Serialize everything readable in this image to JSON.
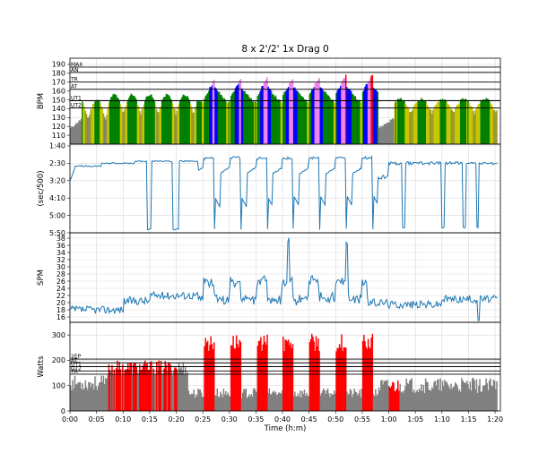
{
  "chart_data": {
    "title": "8 x 2'/2' 1x Drag 0",
    "xlabel": "Time (h:m)",
    "x_ticks": [
      "0:00",
      "0:05",
      "0:10",
      "0:15",
      "0:20",
      "0:25",
      "0:30",
      "0:35",
      "0:40",
      "0:45",
      "0:50",
      "0:55",
      "1:00",
      "1:05",
      "1:10",
      "1:15",
      "1:20"
    ],
    "x_range_min": [
      0,
      81
    ],
    "colors": {
      "hr_gray": "#808080",
      "ut2": "#9a9a2a",
      "ut1": "#c8c800",
      "at": "#008000",
      "tr": "#0000ff",
      "an": "#ee82ee",
      "max": "#ff0000",
      "line": "#1f77b4"
    },
    "intervals_min": [
      [
        25,
        27
      ],
      [
        30,
        32
      ],
      [
        35,
        37
      ],
      [
        40,
        42
      ],
      [
        45,
        47
      ],
      [
        50,
        52
      ],
      [
        55,
        57
      ],
      [
        60,
        62
      ]
    ],
    "panels": [
      {
        "type": "area",
        "ylabel": "BPM",
        "ylim": [
          100,
          197
        ],
        "y_ticks": [
          "110",
          "120",
          "130",
          "140",
          "150",
          "160",
          "170",
          "180",
          "190"
        ],
        "zone_lines": [
          {
            "label": "MAX",
            "value": 187
          },
          {
            "label": "AN",
            "value": 181
          },
          {
            "label": "TR",
            "value": 170
          },
          {
            "label": "AT",
            "value": 162
          },
          {
            "label": "UT1",
            "value": 149
          },
          {
            "label": "UT2",
            "value": 141
          }
        ]
      },
      {
        "type": "line",
        "ylabel": "(sec/500)",
        "ylim": [
          350,
          95
        ],
        "y_ticks": [
          "1:40",
          "2:30",
          "3:20",
          "4:10",
          "5:00",
          "5:50"
        ],
        "y_tick_values": [
          100,
          150,
          200,
          250,
          300,
          350
        ]
      },
      {
        "type": "line",
        "ylabel": "SPM",
        "ylim": [
          14.5,
          39.5
        ],
        "y_ticks": [
          "16",
          "18",
          "20",
          "22",
          "24",
          "26",
          "28",
          "30",
          "32",
          "34",
          "36",
          "38"
        ]
      },
      {
        "type": "bar",
        "ylabel": "Watts",
        "ylim": [
          0,
          350
        ],
        "y_ticks": [
          "0",
          "100",
          "200",
          "300"
        ],
        "zone_lines": [
          {
            "label": "2EP",
            "value": 205
          },
          {
            "label": "AT",
            "value": 190
          },
          {
            "label": "UT1",
            "value": 175
          },
          {
            "label": "UT2",
            "value": 158
          },
          {
            "label": "TR",
            "value": 145
          }
        ]
      }
    ]
  }
}
